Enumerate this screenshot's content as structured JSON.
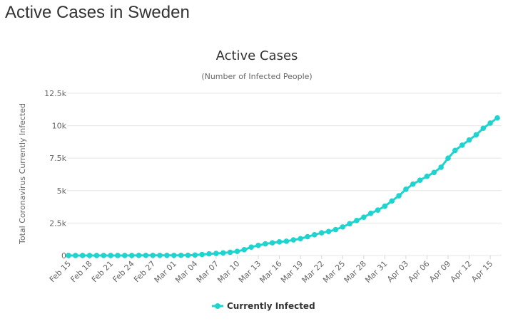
{
  "page": {
    "heading": "Active Cases in Sweden"
  },
  "chart_data": {
    "type": "line",
    "title": "Active Cases",
    "subtitle": "(Number of Infected People)",
    "xlabel": "",
    "ylabel": "Total Coronavirus Currently Infected",
    "ylim": [
      0,
      12500
    ],
    "yticks": [
      0,
      2500,
      5000,
      7500,
      10000,
      12500
    ],
    "ytick_labels": [
      "0",
      "2.5k",
      "5k",
      "7.5k",
      "10k",
      "12.5k"
    ],
    "grid": "horizontal",
    "legend_position": "bottom-center",
    "colors": {
      "series": "#1fd4cf",
      "grid": "#e6e6e6",
      "text": "#666666"
    },
    "x": [
      "Feb 15",
      "Feb 16",
      "Feb 17",
      "Feb 18",
      "Feb 19",
      "Feb 20",
      "Feb 21",
      "Feb 22",
      "Feb 23",
      "Feb 24",
      "Feb 25",
      "Feb 26",
      "Feb 27",
      "Feb 28",
      "Feb 29",
      "Mar 01",
      "Mar 02",
      "Mar 03",
      "Mar 04",
      "Mar 05",
      "Mar 06",
      "Mar 07",
      "Mar 08",
      "Mar 09",
      "Mar 10",
      "Mar 11",
      "Mar 12",
      "Mar 13",
      "Mar 14",
      "Mar 15",
      "Mar 16",
      "Mar 17",
      "Mar 18",
      "Mar 19",
      "Mar 20",
      "Mar 21",
      "Mar 22",
      "Mar 23",
      "Mar 24",
      "Mar 25",
      "Mar 26",
      "Mar 27",
      "Mar 28",
      "Mar 29",
      "Mar 30",
      "Mar 31",
      "Apr 01",
      "Apr 02",
      "Apr 03",
      "Apr 04",
      "Apr 05",
      "Apr 06",
      "Apr 07",
      "Apr 08",
      "Apr 09",
      "Apr 10",
      "Apr 11",
      "Apr 12",
      "Apr 13",
      "Apr 14",
      "Apr 15",
      "Apr 16"
    ],
    "xtick_labels": [
      "Feb 15",
      "Feb 18",
      "Feb 21",
      "Feb 24",
      "Feb 27",
      "Mar 01",
      "Mar 04",
      "Mar 07",
      "Mar 10",
      "Mar 13",
      "Mar 16",
      "Mar 19",
      "Mar 22",
      "Mar 25",
      "Mar 28",
      "Mar 31",
      "Apr 03",
      "Apr 06",
      "Apr 09",
      "Apr 12",
      "Apr 15"
    ],
    "series": [
      {
        "name": "Currently Infected",
        "values": [
          1,
          1,
          1,
          1,
          1,
          1,
          1,
          1,
          1,
          5,
          10,
          11,
          11,
          12,
          12,
          13,
          14,
          20,
          35,
          80,
          130,
          160,
          200,
          250,
          320,
          450,
          650,
          780,
          900,
          980,
          1050,
          1100,
          1200,
          1300,
          1450,
          1600,
          1750,
          1850,
          2000,
          2200,
          2450,
          2700,
          2950,
          3250,
          3500,
          3800,
          4200,
          4600,
          5100,
          5500,
          5800,
          6100,
          6400,
          6800,
          7500,
          8100,
          8500,
          8900,
          9300,
          9800,
          10200,
          10600
        ]
      }
    ]
  }
}
